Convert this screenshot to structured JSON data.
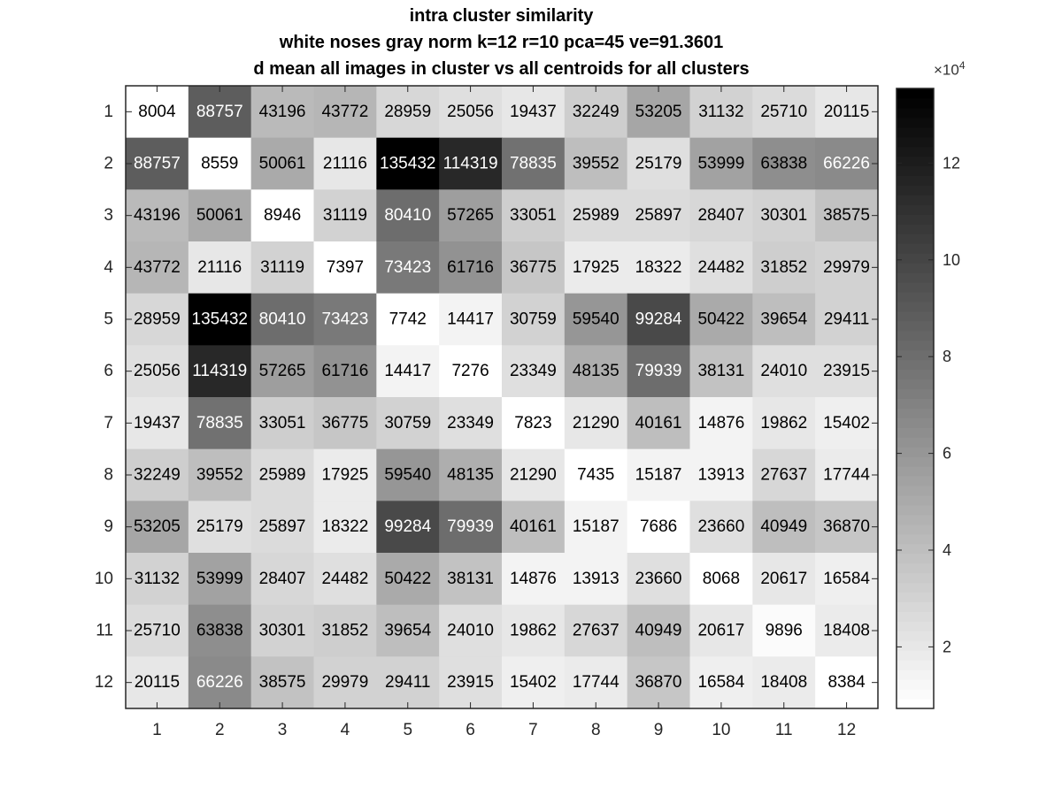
{
  "chart_data": {
    "type": "heatmap",
    "title": [
      "intra cluster similarity",
      "white noses gray norm k=12 r=10 pca=45 ve=91.3601",
      "d mean all images in cluster vs all centroids for all clusters"
    ],
    "x_tick_labels": [
      "1",
      "2",
      "3",
      "4",
      "5",
      "6",
      "7",
      "8",
      "9",
      "10",
      "11",
      "12"
    ],
    "y_tick_labels": [
      "1",
      "2",
      "3",
      "4",
      "5",
      "6",
      "7",
      "8",
      "9",
      "10",
      "11",
      "12"
    ],
    "colormap": "gray-reversed",
    "color_range": [
      7276,
      135432
    ],
    "colorbar": {
      "multiplier_base": "×10",
      "multiplier_exponent": "4",
      "ticks": [
        2,
        4,
        6,
        8,
        10,
        12
      ],
      "tick_labels": [
        "2",
        "4",
        "6",
        "8",
        "10",
        "12"
      ]
    },
    "values": [
      [
        8004,
        88757,
        43196,
        43772,
        28959,
        25056,
        19437,
        32249,
        53205,
        31132,
        25710,
        20115
      ],
      [
        88757,
        8559,
        50061,
        21116,
        135432,
        114319,
        78835,
        39552,
        25179,
        53999,
        63838,
        66226
      ],
      [
        43196,
        50061,
        8946,
        31119,
        80410,
        57265,
        33051,
        25989,
        25897,
        28407,
        30301,
        38575
      ],
      [
        43772,
        21116,
        31119,
        7397,
        73423,
        61716,
        36775,
        17925,
        18322,
        24482,
        31852,
        29979
      ],
      [
        28959,
        135432,
        80410,
        73423,
        7742,
        14417,
        30759,
        59540,
        99284,
        50422,
        39654,
        29411
      ],
      [
        25056,
        114319,
        57265,
        61716,
        14417,
        7276,
        23349,
        48135,
        79939,
        38131,
        24010,
        23915
      ],
      [
        19437,
        78835,
        33051,
        36775,
        30759,
        23349,
        7823,
        21290,
        40161,
        14876,
        19862,
        15402
      ],
      [
        32249,
        39552,
        25989,
        17925,
        59540,
        48135,
        21290,
        7435,
        15187,
        13913,
        27637,
        17744
      ],
      [
        53205,
        25179,
        25897,
        18322,
        99284,
        79939,
        40161,
        15187,
        7686,
        23660,
        40949,
        36870
      ],
      [
        31132,
        53999,
        28407,
        24482,
        50422,
        38131,
        14876,
        13913,
        23660,
        8068,
        20617,
        16584
      ],
      [
        25710,
        63838,
        30301,
        31852,
        39654,
        24010,
        19862,
        27637,
        40949,
        20617,
        9896,
        18408
      ],
      [
        20115,
        66226,
        38575,
        29979,
        29411,
        23915,
        15402,
        17744,
        36870,
        16584,
        18408,
        8384
      ]
    ]
  }
}
